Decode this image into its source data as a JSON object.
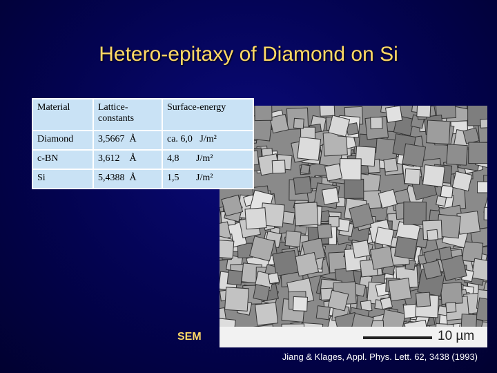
{
  "title": "Hetero-epitaxy of Diamond on Si",
  "table": {
    "header": [
      "Material",
      "Lattice-constants",
      "Surface-energy"
    ],
    "rows": [
      [
        "Diamond",
        "3,5667  Å",
        "ca. 6,0   J/m²"
      ],
      [
        "c-BN",
        "3,612    Å",
        "4,8       J/m²"
      ],
      [
        "Si",
        "5,4388  Å",
        "1,5       J/m²"
      ]
    ]
  },
  "image": {
    "label": "SEM",
    "scale": "10 µm"
  },
  "citation": "Jiang & Klages, Appl. Phys. Lett. 62, 3438 (1993)"
}
